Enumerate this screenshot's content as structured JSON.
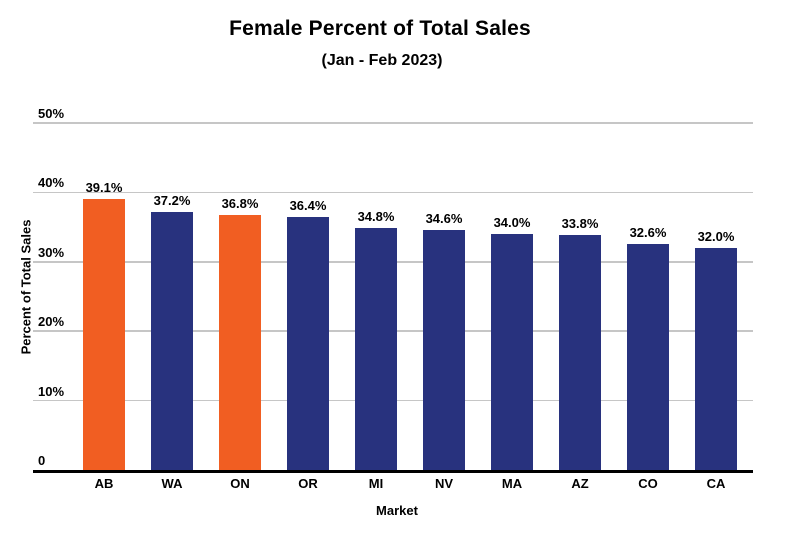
{
  "colors": {
    "highlight": "#F15E22",
    "bar": "#28327E",
    "gridline": "#C6C6C6",
    "axis": "#000000",
    "text": "#000000"
  },
  "chart_data": {
    "type": "bar",
    "title": "Female Percent of Total Sales",
    "subtitle": "(Jan - Feb 2023)",
    "xlabel": "Market",
    "ylabel": "Percent of Total Sales",
    "categories": [
      "AB",
      "WA",
      "ON",
      "OR",
      "MI",
      "NV",
      "MA",
      "AZ",
      "CO",
      "CA"
    ],
    "values": [
      39.1,
      37.2,
      36.8,
      36.4,
      34.8,
      34.6,
      34.0,
      33.8,
      32.6,
      32.0
    ],
    "bar_labels": [
      "39.1%",
      "37.2%",
      "36.8%",
      "36.4%",
      "34.8%",
      "34.6%",
      "34.0%",
      "33.8%",
      "32.6%",
      "32.0%"
    ],
    "highlighted_categories": [
      "AB",
      "ON"
    ],
    "ylim": [
      0,
      50
    ],
    "yticks": [
      {
        "value": 50,
        "label": "50%"
      },
      {
        "value": 40,
        "label": "40%"
      },
      {
        "value": 30,
        "label": "30%"
      },
      {
        "value": 20,
        "label": "20%"
      },
      {
        "value": 10,
        "label": "10%"
      },
      {
        "value": 0,
        "label": "0"
      }
    ],
    "grid": true,
    "legend": false
  }
}
